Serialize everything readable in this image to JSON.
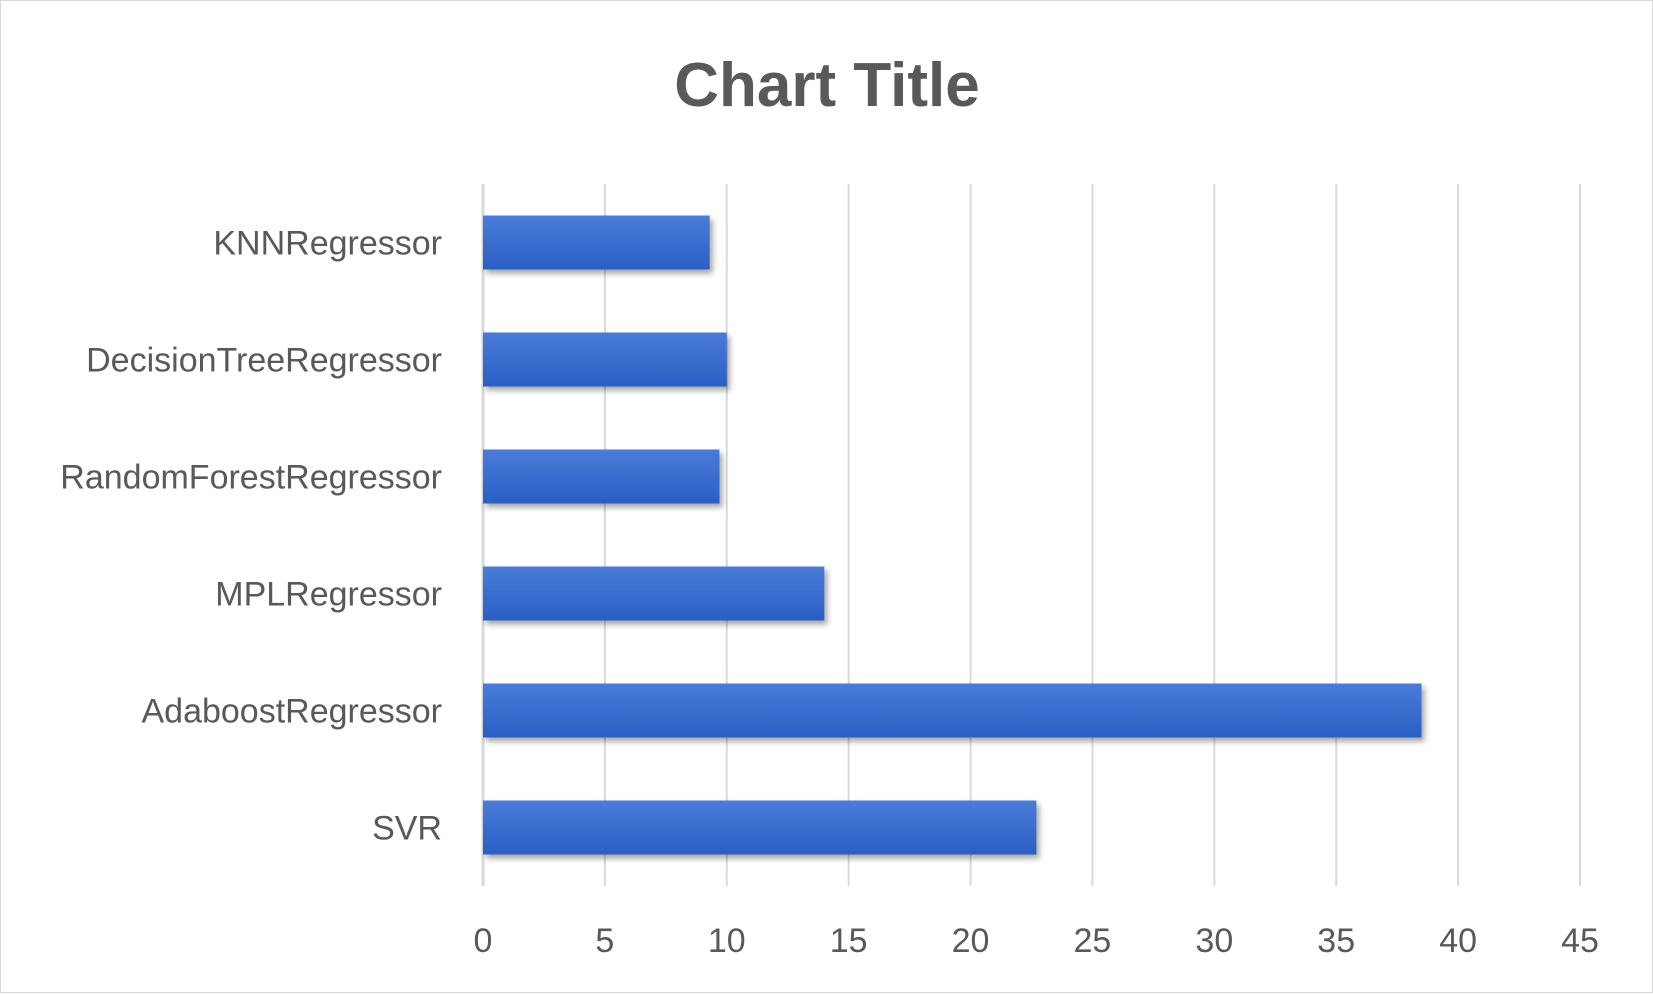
{
  "chart_data": {
    "type": "bar",
    "orientation": "horizontal",
    "title": "Chart Title",
    "xlabel": "",
    "ylabel": "",
    "categories": [
      "SVR",
      "AdaboostRegressor",
      "MPLRegressor",
      "RandomForestRegressor",
      "DecisionTreeRegressor",
      "KNNRegressor"
    ],
    "values": [
      22.7,
      38.5,
      14.0,
      9.7,
      10.0,
      9.3
    ],
    "xlim": [
      0,
      45
    ],
    "xticks": [
      0,
      5,
      10,
      15,
      20,
      25,
      30,
      35,
      40,
      45
    ],
    "xtick_labels": [
      "0",
      "5",
      "10",
      "15",
      "20",
      "25",
      "30",
      "35",
      "40",
      "45"
    ],
    "grid": "vertical",
    "legend": "none",
    "colors": {
      "bar_top": "#4a7bd8",
      "bar_bottom": "#2a5fc4",
      "text": "#595959",
      "grid": "#d9d9d9"
    }
  }
}
